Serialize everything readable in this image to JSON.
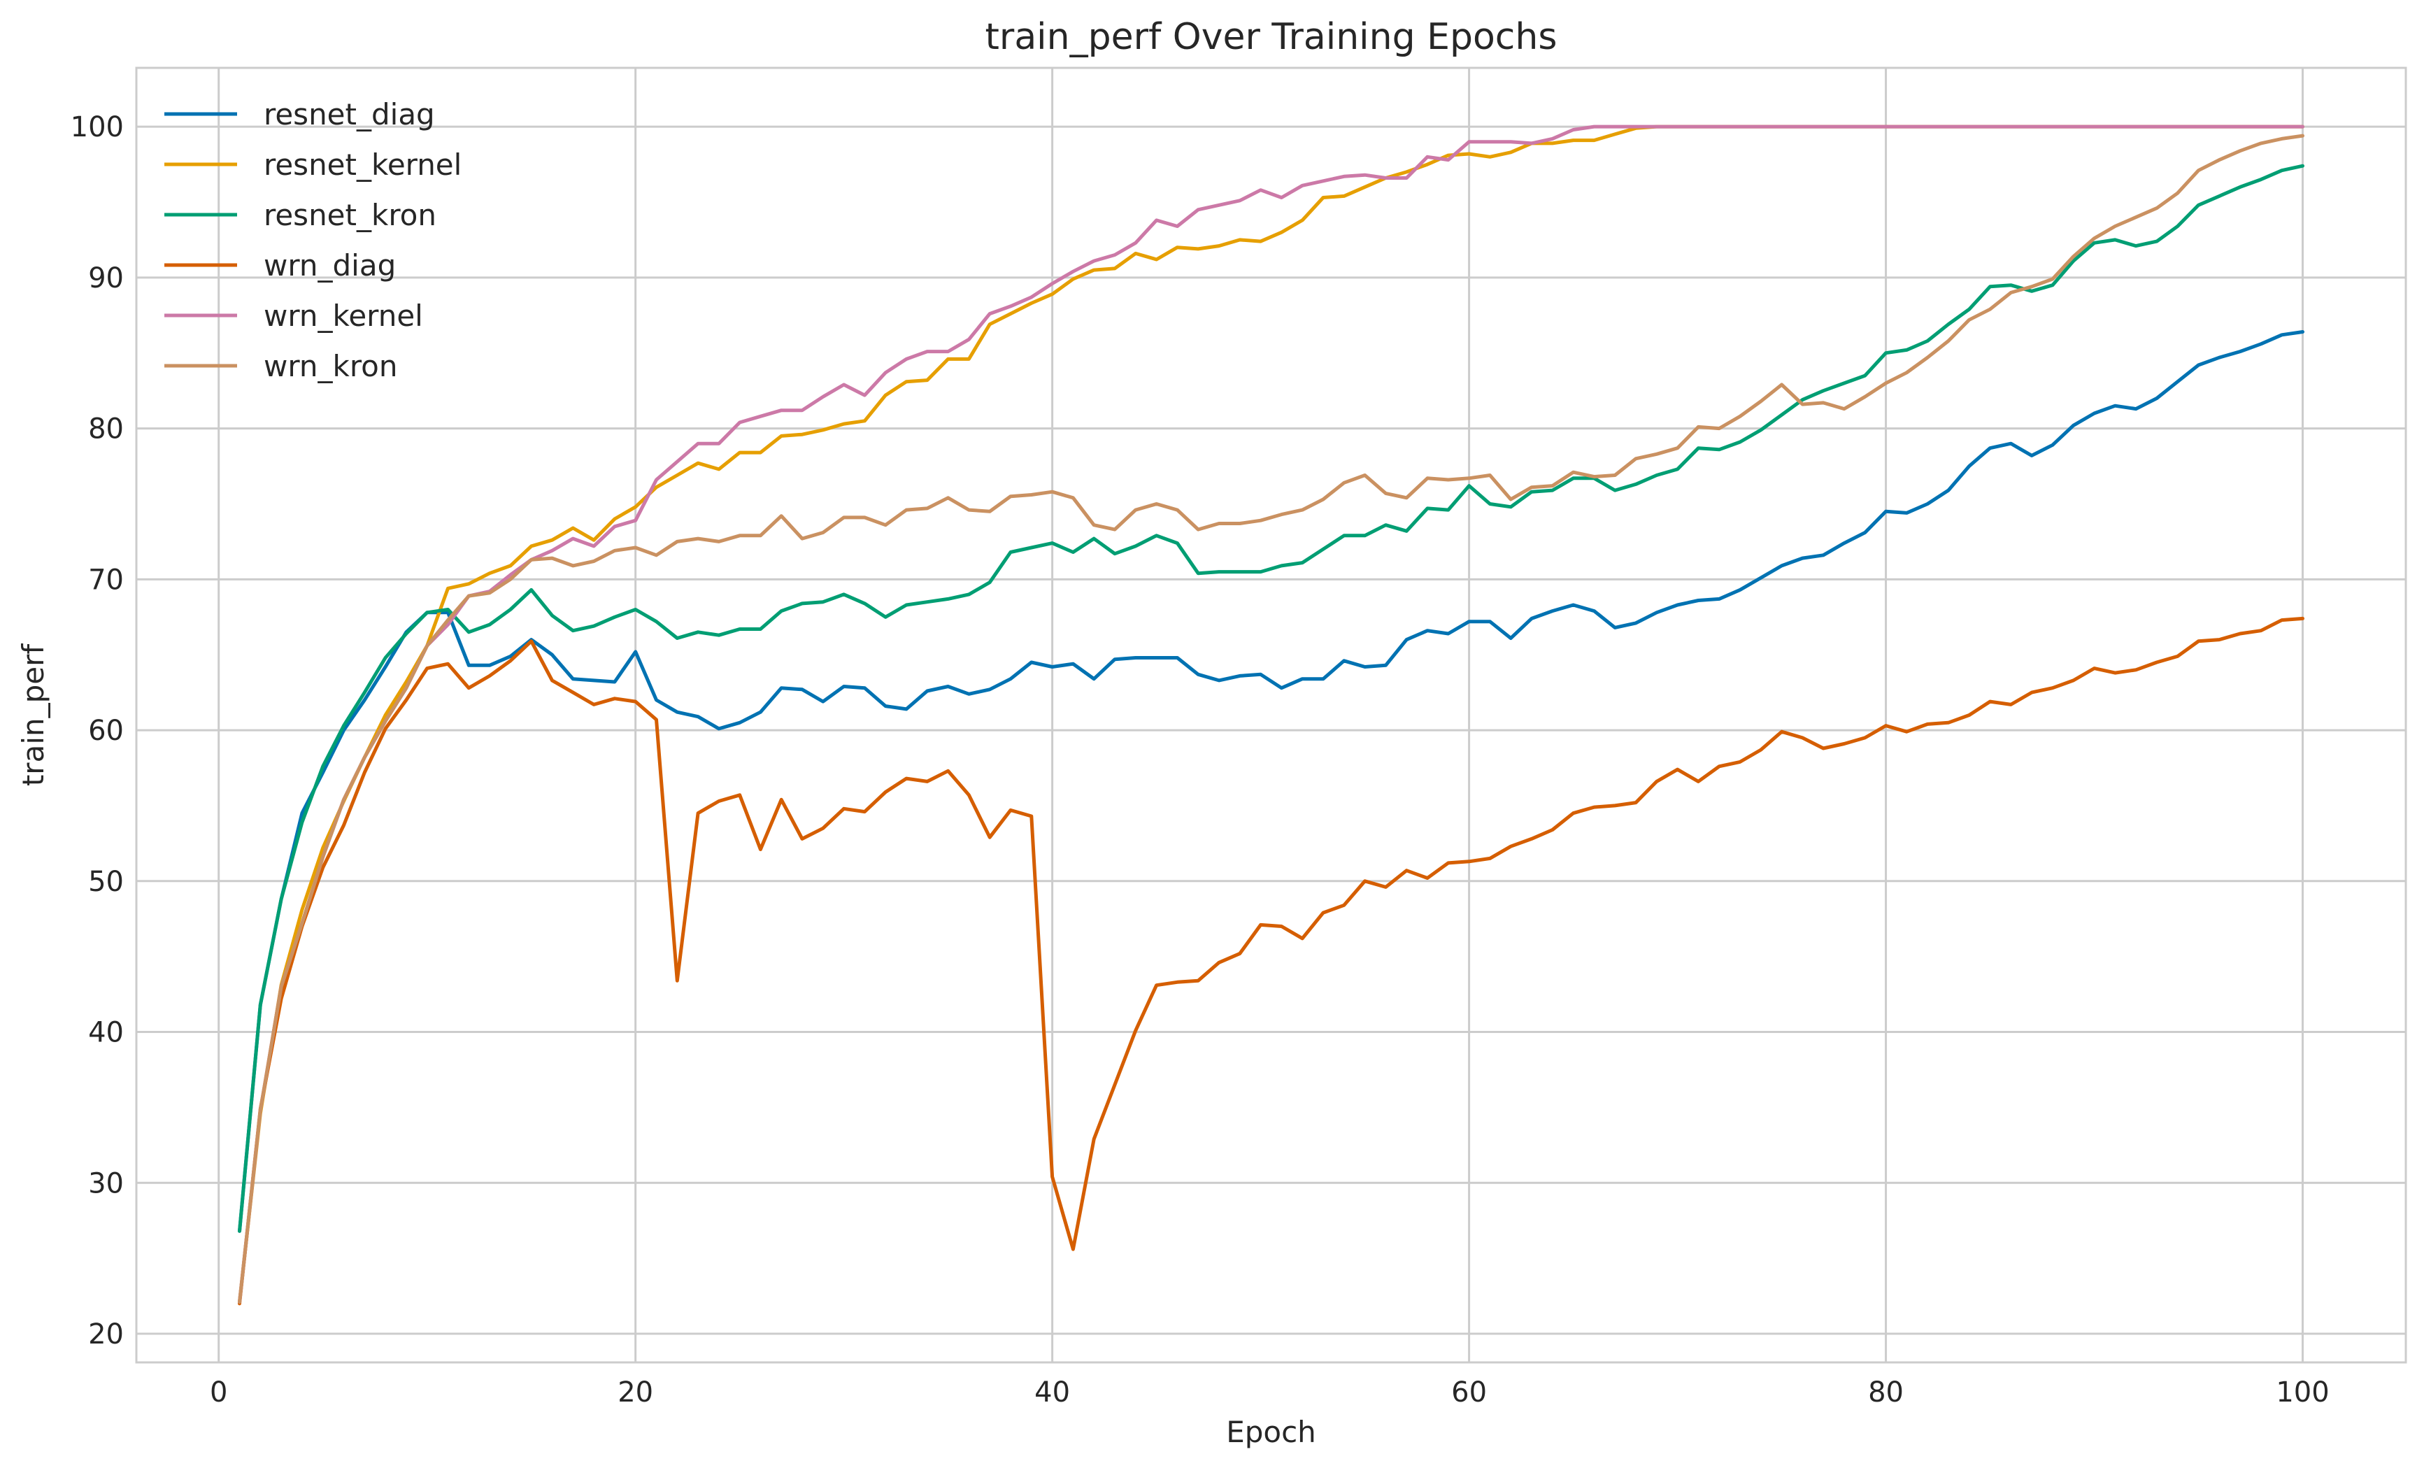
{
  "chart_data": {
    "type": "line",
    "title": "train_perf Over Training Epochs",
    "xlabel": "Epoch",
    "ylabel": "train_perf",
    "xlim": [
      -3.95,
      104.95
    ],
    "ylim": [
      18.1,
      103.9
    ],
    "xticks": [
      0,
      20,
      40,
      60,
      80,
      100
    ],
    "yticks": [
      20,
      30,
      40,
      50,
      60,
      70,
      80,
      90,
      100
    ],
    "grid": true,
    "legend_position": "top-left",
    "series": [
      {
        "name": "resnet_diag",
        "color": "#0072B2",
        "values": [
          26.8,
          41.8,
          48.8,
          54.5,
          57.2,
          60.0,
          62.0,
          64.2,
          66.5,
          67.8,
          67.8,
          64.3,
          64.3,
          64.9,
          66.0,
          65.0,
          63.4,
          63.3,
          63.2,
          65.2,
          62.0,
          61.2,
          60.9,
          60.1,
          60.5,
          61.2,
          62.8,
          62.7,
          61.9,
          62.9,
          62.8,
          61.6,
          61.4,
          62.6,
          62.9,
          62.4,
          62.7,
          63.4,
          64.5,
          64.2,
          64.4,
          63.4,
          64.7,
          64.8,
          64.8,
          64.8,
          63.7,
          63.3,
          63.6,
          63.7,
          62.8,
          63.4,
          63.4,
          64.6,
          64.2,
          64.3,
          66.0,
          66.6,
          66.4,
          67.2,
          67.2,
          66.1,
          67.4,
          67.9,
          68.3,
          67.9,
          66.8,
          67.1,
          67.8,
          68.3,
          68.6,
          68.7,
          69.3,
          70.1,
          70.9,
          71.4,
          71.6,
          72.4,
          73.1,
          74.5,
          74.4,
          75.0,
          75.9,
          77.5,
          78.7,
          79.0,
          78.2,
          78.9,
          80.2,
          81.0,
          81.5,
          81.3,
          82.0,
          83.1,
          84.2,
          84.7,
          85.1,
          85.6,
          86.2,
          86.4
        ]
      },
      {
        "name": "resnet_kernel",
        "color": "#E69F00",
        "values": [
          22.1,
          34.6,
          43.1,
          48.1,
          52.2,
          55.3,
          58.2,
          61.0,
          63.2,
          65.6,
          69.4,
          69.7,
          70.4,
          70.9,
          72.2,
          72.6,
          73.4,
          72.6,
          74.0,
          74.8,
          76.1,
          76.9,
          77.7,
          77.3,
          78.4,
          78.4,
          79.5,
          79.6,
          79.9,
          80.3,
          80.5,
          82.2,
          83.1,
          83.2,
          84.6,
          84.6,
          86.9,
          87.6,
          88.3,
          88.9,
          89.9,
          90.5,
          90.6,
          91.6,
          91.2,
          92.0,
          91.9,
          92.1,
          92.5,
          92.4,
          93.0,
          93.8,
          95.3,
          95.4,
          96.0,
          96.6,
          97.0,
          97.5,
          98.1,
          98.2,
          98.0,
          98.3,
          98.9,
          98.9,
          99.1,
          99.1,
          99.5,
          99.9,
          100,
          100,
          100,
          100,
          100,
          100,
          100,
          100,
          100,
          100,
          100,
          100,
          100,
          100,
          100,
          100,
          100,
          100,
          100,
          100,
          100,
          100,
          100,
          100,
          100,
          100,
          100,
          100,
          100,
          100,
          100,
          100
        ]
      },
      {
        "name": "resnet_kron",
        "color": "#009E73",
        "values": [
          26.8,
          41.8,
          48.8,
          53.9,
          57.6,
          60.3,
          62.5,
          64.8,
          66.4,
          67.8,
          68.0,
          66.5,
          67.0,
          68.0,
          69.3,
          67.6,
          66.6,
          66.9,
          67.5,
          68.0,
          67.2,
          66.1,
          66.5,
          66.3,
          66.7,
          66.7,
          67.9,
          68.4,
          68.5,
          69.0,
          68.4,
          67.5,
          68.3,
          68.5,
          68.7,
          69.0,
          69.8,
          71.8,
          72.1,
          72.4,
          71.8,
          72.7,
          71.7,
          72.2,
          72.9,
          72.4,
          70.4,
          70.5,
          70.5,
          70.5,
          70.9,
          71.1,
          72.0,
          72.9,
          72.9,
          73.6,
          73.2,
          74.7,
          74.6,
          76.2,
          75.0,
          74.8,
          75.8,
          75.9,
          76.7,
          76.7,
          75.9,
          76.3,
          76.9,
          77.3,
          78.7,
          78.6,
          79.1,
          79.9,
          80.9,
          81.9,
          82.5,
          83.0,
          83.5,
          85.0,
          85.2,
          85.8,
          86.9,
          87.9,
          89.4,
          89.5,
          89.1,
          89.5,
          91.1,
          92.3,
          92.5,
          92.1,
          92.4,
          93.4,
          94.8,
          95.4,
          96.0,
          96.5,
          97.1,
          97.4
        ]
      },
      {
        "name": "wrn_diag",
        "color": "#D55E00",
        "values": [
          22.0,
          34.9,
          42.2,
          47.0,
          50.9,
          53.7,
          57.2,
          60.1,
          62.0,
          64.1,
          64.4,
          62.8,
          63.6,
          64.6,
          65.9,
          63.3,
          62.5,
          61.7,
          62.1,
          61.9,
          60.7,
          43.4,
          54.5,
          55.3,
          55.7,
          52.1,
          55.4,
          52.8,
          53.5,
          54.8,
          54.6,
          55.9,
          56.8,
          56.6,
          57.3,
          55.7,
          52.9,
          54.7,
          54.3,
          30.4,
          25.6,
          32.9,
          36.5,
          40.1,
          43.1,
          43.3,
          43.4,
          44.6,
          45.2,
          47.1,
          47.0,
          46.2,
          47.9,
          48.4,
          50.0,
          49.6,
          50.7,
          50.2,
          51.2,
          51.3,
          51.5,
          52.3,
          52.8,
          53.4,
          54.5,
          54.9,
          55.0,
          55.2,
          56.6,
          57.4,
          56.6,
          57.6,
          57.9,
          58.7,
          59.9,
          59.5,
          58.8,
          59.1,
          59.5,
          60.3,
          59.9,
          60.4,
          60.5,
          61.0,
          61.9,
          61.7,
          62.5,
          62.8,
          63.3,
          64.1,
          63.8,
          64.0,
          64.5,
          64.9,
          65.9,
          66.0,
          66.4,
          66.6,
          67.3,
          67.4
        ]
      },
      {
        "name": "wrn_kernel",
        "color": "#CC79A7",
        "values": [
          22.1,
          34.8,
          43.0,
          47.2,
          51.6,
          55.4,
          58.2,
          60.6,
          62.8,
          65.6,
          67.0,
          68.9,
          69.2,
          70.3,
          71.3,
          71.9,
          72.7,
          72.2,
          73.5,
          73.9,
          76.6,
          77.8,
          79.0,
          79.0,
          80.4,
          80.8,
          81.2,
          81.2,
          82.1,
          82.9,
          82.2,
          83.7,
          84.6,
          85.1,
          85.1,
          85.9,
          87.6,
          88.1,
          88.7,
          89.6,
          90.4,
          91.1,
          91.5,
          92.3,
          93.8,
          93.4,
          94.5,
          94.8,
          95.1,
          95.8,
          95.3,
          96.1,
          96.4,
          96.7,
          96.8,
          96.6,
          96.6,
          98.0,
          97.8,
          99.0,
          99.0,
          99.0,
          98.9,
          99.2,
          99.8,
          100,
          100,
          100,
          100,
          100,
          100,
          100,
          100,
          100,
          100,
          100,
          100,
          100,
          100,
          100,
          100,
          100,
          100,
          100,
          100,
          100,
          100,
          100,
          100,
          100,
          100,
          100,
          100,
          100,
          100,
          100,
          100,
          100,
          100,
          100
        ]
      },
      {
        "name": "wrn_kron",
        "color": "#CA9161",
        "values": [
          22.1,
          34.8,
          43.0,
          47.2,
          51.6,
          55.4,
          58.2,
          60.6,
          62.8,
          65.6,
          67.3,
          68.9,
          69.1,
          70.0,
          71.3,
          71.4,
          70.9,
          71.2,
          71.9,
          72.1,
          71.6,
          72.5,
          72.7,
          72.5,
          72.9,
          72.9,
          74.2,
          72.7,
          73.1,
          74.1,
          74.1,
          73.6,
          74.6,
          74.7,
          75.4,
          74.6,
          74.5,
          75.5,
          75.6,
          75.8,
          75.4,
          73.6,
          73.3,
          74.6,
          75.0,
          74.6,
          73.3,
          73.7,
          73.7,
          73.9,
          74.3,
          74.6,
          75.3,
          76.4,
          76.9,
          75.7,
          75.4,
          76.7,
          76.6,
          76.7,
          76.9,
          75.3,
          76.1,
          76.2,
          77.1,
          76.8,
          76.9,
          78.0,
          78.3,
          78.7,
          80.1,
          80.0,
          80.8,
          81.8,
          82.9,
          81.6,
          81.7,
          81.3,
          82.1,
          83.0,
          83.7,
          84.7,
          85.8,
          87.2,
          87.9,
          89.0,
          89.4,
          89.9,
          91.4,
          92.6,
          93.4,
          94.0,
          94.6,
          95.6,
          97.1,
          97.8,
          98.4,
          98.9,
          99.2,
          99.4
        ]
      }
    ]
  }
}
